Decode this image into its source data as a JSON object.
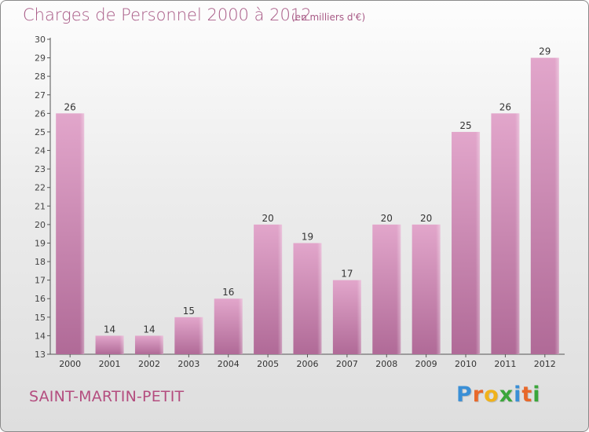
{
  "title": "Charges de Personnel 2000 à 2012",
  "subtitle": "(en milliers d'€)",
  "city": "SAINT-MARTIN-PETIT",
  "logo": {
    "letters": [
      "P",
      "r",
      "o",
      "x",
      "i",
      "t",
      "i"
    ],
    "colors": [
      "#3a8fd6",
      "#e8682a",
      "#f0b21b",
      "#3aa63a",
      "#3a8fd6",
      "#e8682a",
      "#3aa63a"
    ]
  },
  "colors": {
    "bar_top": "#e2a6cb",
    "bar_bottom": "#b06a97",
    "text": "#a85a86"
  },
  "chart_data": {
    "type": "bar",
    "categories": [
      "2000",
      "2001",
      "2002",
      "2003",
      "2004",
      "2005",
      "2006",
      "2007",
      "2008",
      "2009",
      "2010",
      "2011",
      "2012"
    ],
    "values": [
      26,
      14,
      14,
      15,
      16,
      20,
      19,
      17,
      20,
      20,
      25,
      26,
      29
    ],
    "title": "Charges de Personnel 2000 à 2012",
    "xlabel": "",
    "ylabel": "",
    "ylim": [
      13,
      30
    ],
    "yticks": [
      13,
      14,
      15,
      16,
      17,
      18,
      19,
      20,
      21,
      22,
      23,
      24,
      25,
      26,
      27,
      28,
      29,
      30
    ],
    "grid": false,
    "data_labels": true
  }
}
